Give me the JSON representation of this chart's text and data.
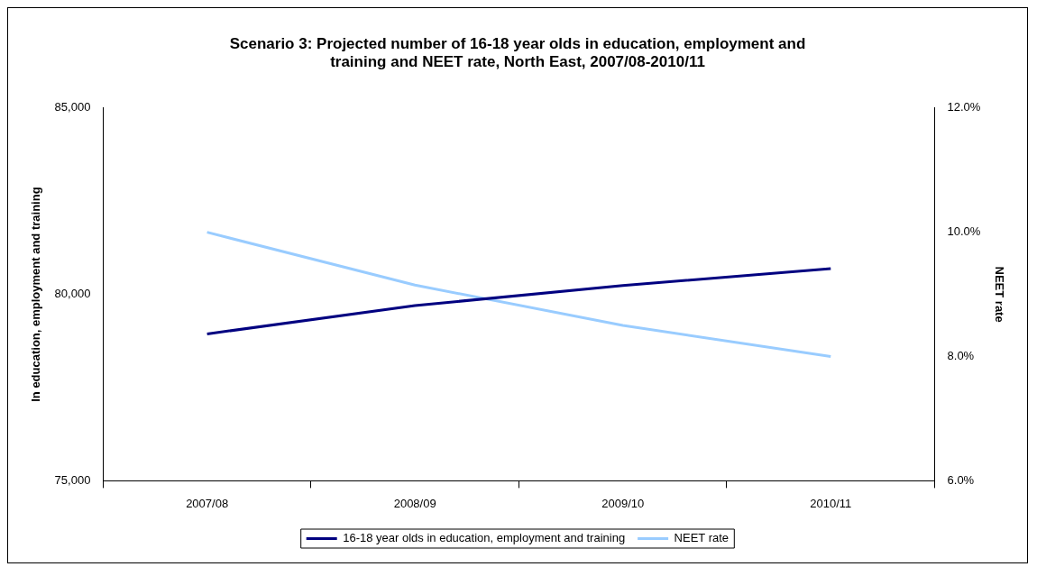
{
  "chart_data": {
    "type": "line",
    "title": "Scenario 3: Projected number of 16-18 year olds in education, employment and training and NEET rate, North East, 2007/08-2010/11",
    "ylabel": "In education, employment and training",
    "y2label": "NEET rate",
    "categories": [
      "2007/08",
      "2008/09",
      "2009/10",
      "2010/11"
    ],
    "series": [
      {
        "name": "16-18 year olds in education, employment and training",
        "color": "#000080",
        "values": [
          78940,
          79700,
          80240,
          80690
        ]
      },
      {
        "name": "NEET rate",
        "color": "#99ccff",
        "values": [
          10.0,
          9.15,
          8.5,
          8.0
        ],
        "axis": "y2"
      }
    ],
    "ylim": [
      75000,
      85000
    ],
    "yticks": [
      {
        "value": 75000,
        "label": "75,000"
      },
      {
        "value": 80000,
        "label": "80,000"
      },
      {
        "value": 85000,
        "label": "85,000"
      }
    ],
    "y2lim": [
      6,
      12
    ],
    "y2ticks": [
      {
        "value": 6,
        "label": "6.0%"
      },
      {
        "value": 8,
        "label": "8.0%"
      },
      {
        "value": 10,
        "label": "10.0%"
      },
      {
        "value": 12,
        "label": "12.0%"
      }
    ],
    "grid": false,
    "legend": "bottom",
    "marker": "none",
    "line_style": "solid"
  }
}
